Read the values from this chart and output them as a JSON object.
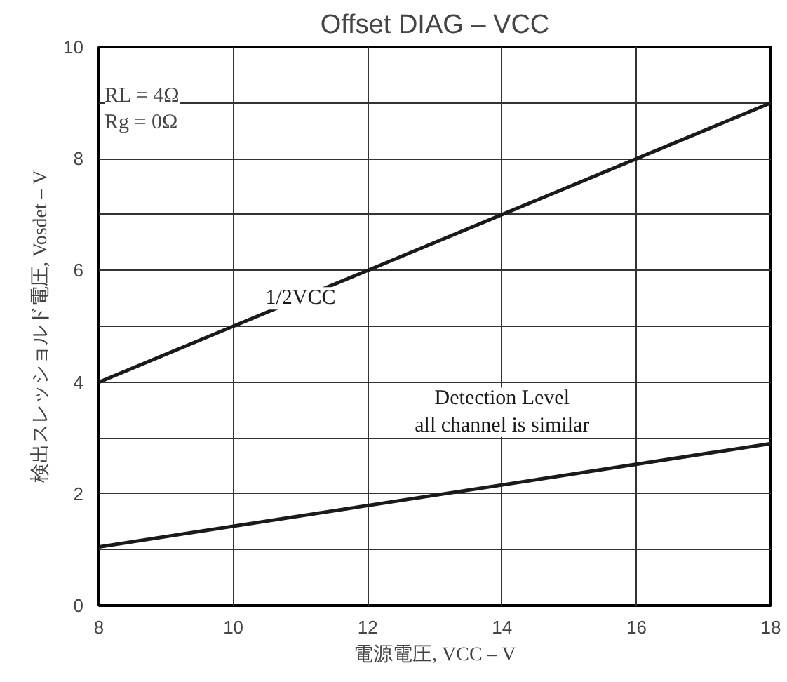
{
  "chart_data": {
    "type": "line",
    "title": "Offset DIAG – VCC",
    "xlabel": "電源電圧, VCC – V",
    "ylabel": "検出スレッショルド電圧, Vosdet – V",
    "x": [
      8,
      18
    ],
    "series": [
      {
        "name": "1/2VCC",
        "color": "#1a1a1a",
        "values": [
          4,
          9
        ]
      },
      {
        "name": "Detection Level\nall channel is similar",
        "color": "#1a1a1a",
        "values": [
          1.05,
          2.9
        ]
      }
    ],
    "annotations": [
      "RL = 4Ω\nRg = 0Ω"
    ],
    "xlim": [
      8,
      18
    ],
    "xticks": [
      8,
      10,
      12,
      14,
      16,
      18
    ],
    "ylim": [
      0,
      10
    ],
    "yticks": [
      0,
      {
        "value": 1,
        "label": null
      },
      2,
      {
        "value": 3,
        "label": null
      },
      4,
      {
        "value": 5,
        "label": null
      },
      6,
      {
        "value": 7,
        "label": null
      },
      8,
      {
        "value": 9,
        "label": null
      },
      10
    ],
    "grid": true,
    "marker": "none",
    "line_style": "solid"
  }
}
